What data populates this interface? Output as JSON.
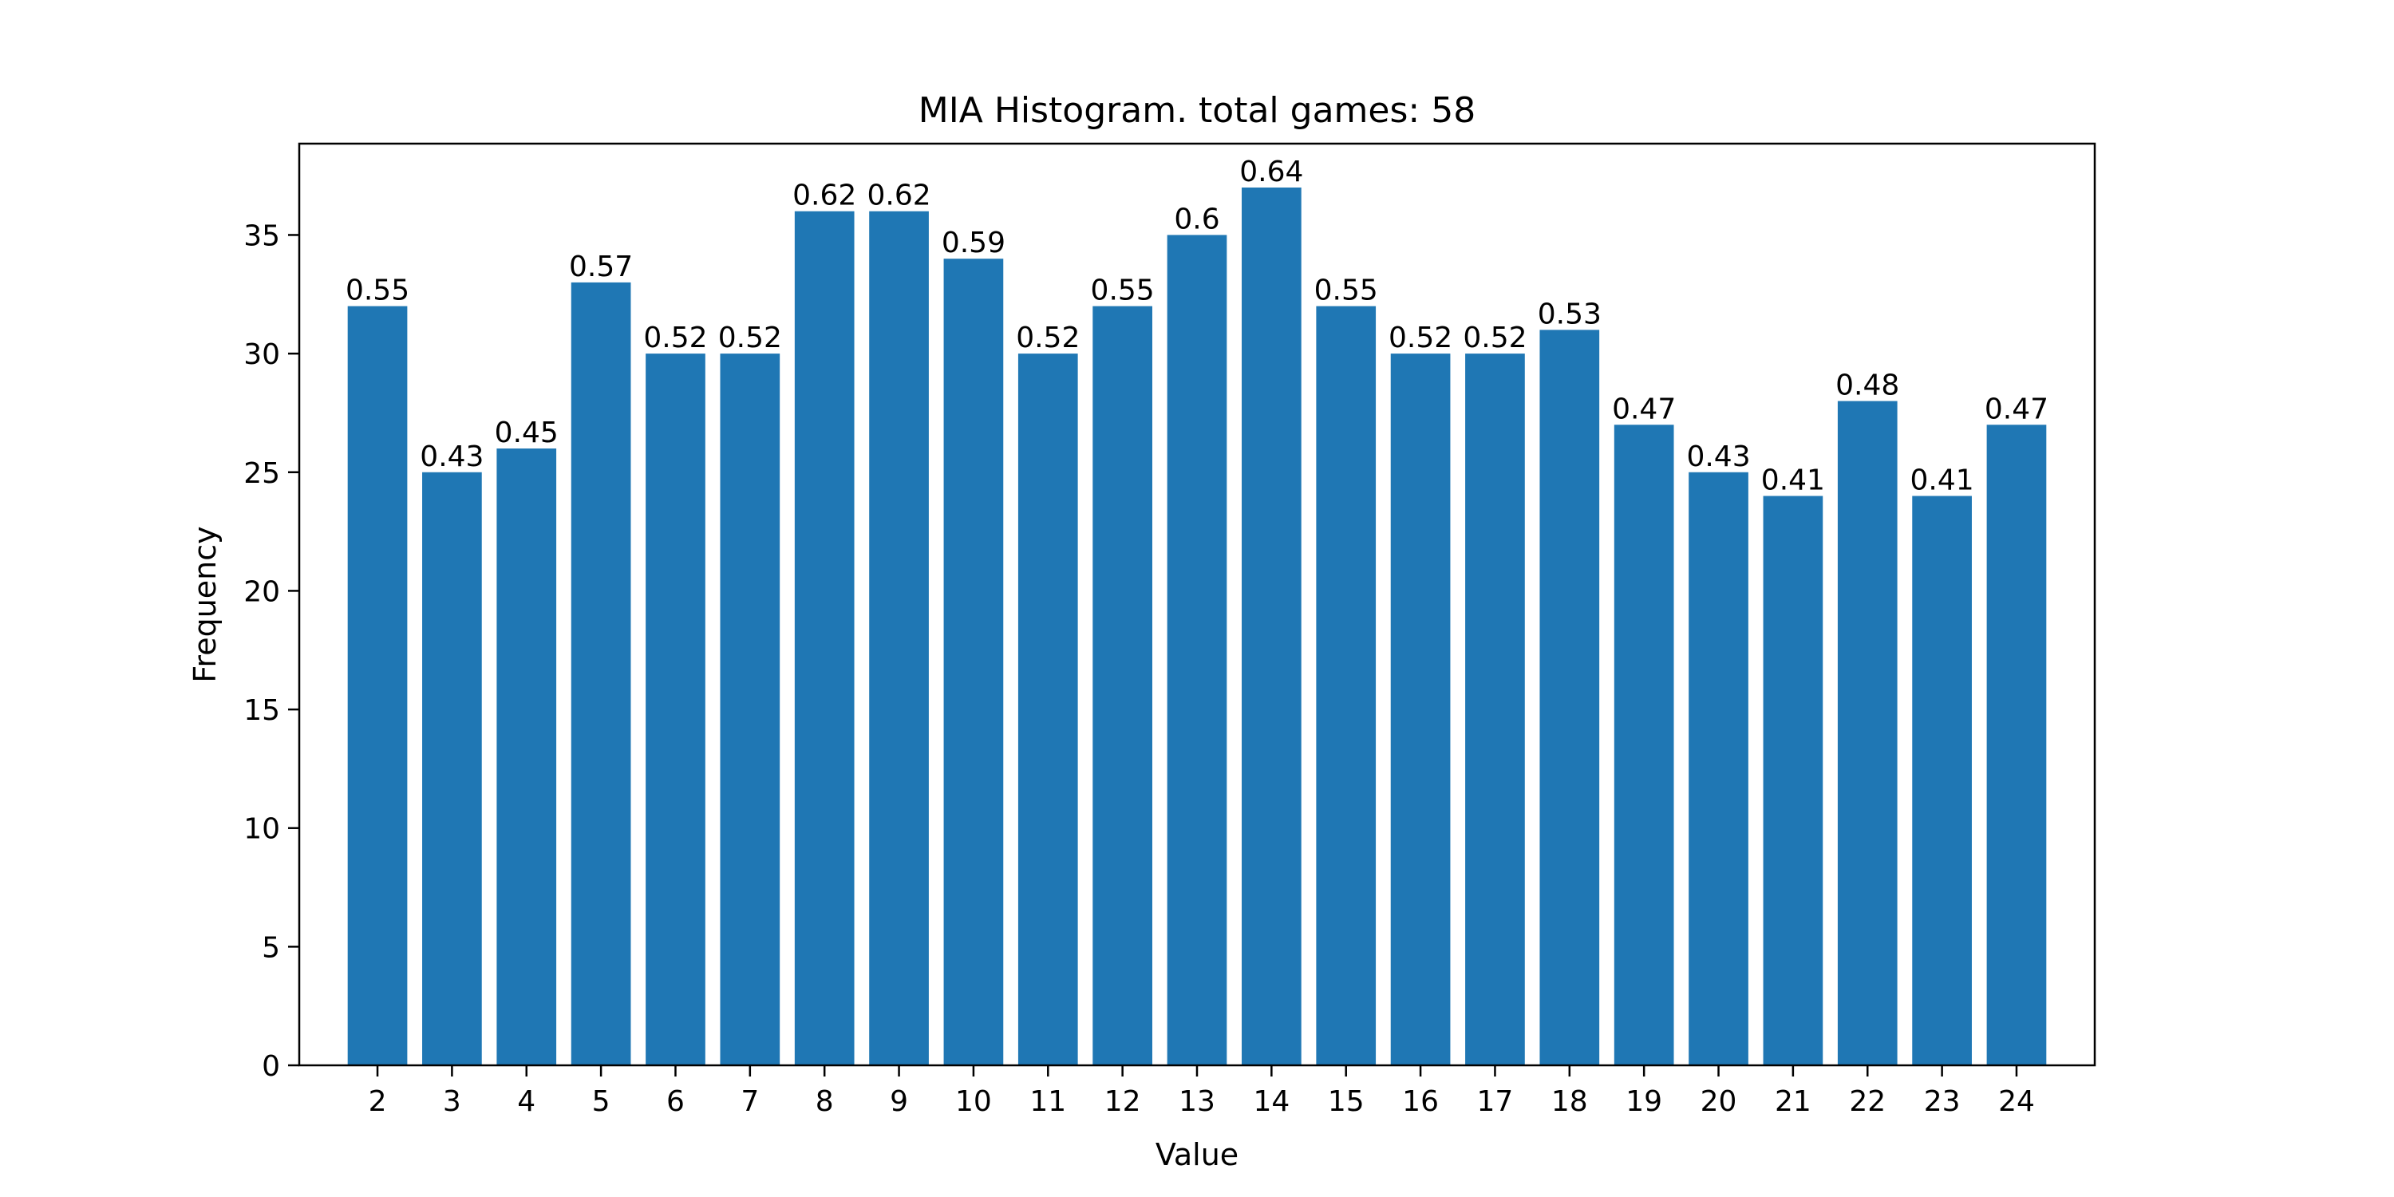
{
  "chart_data": {
    "type": "bar",
    "title": "MIA Histogram. total games: 58",
    "xlabel": "Value",
    "ylabel": "Frequency",
    "categories": [
      2,
      3,
      4,
      5,
      6,
      7,
      8,
      9,
      10,
      11,
      12,
      13,
      14,
      15,
      16,
      17,
      18,
      19,
      20,
      21,
      22,
      23,
      24
    ],
    "values": [
      32,
      25,
      26,
      33,
      30,
      30,
      36,
      36,
      34,
      30,
      32,
      35,
      37,
      32,
      30,
      30,
      31,
      27,
      25,
      24,
      28,
      24,
      27
    ],
    "bar_labels": [
      "0.55",
      "0.43",
      "0.45",
      "0.57",
      "0.52",
      "0.52",
      "0.62",
      "0.62",
      "0.59",
      "0.52",
      "0.55",
      "0.6",
      "0.64",
      "0.55",
      "0.52",
      "0.52",
      "0.53",
      "0.47",
      "0.43",
      "0.41",
      "0.48",
      "0.41",
      "0.47"
    ],
    "ylim": [
      0,
      38.85
    ],
    "yticks": [
      0,
      5,
      10,
      15,
      20,
      25,
      30,
      35
    ],
    "grid": false,
    "legend": "none",
    "colors": {
      "bar": "#1f77b4",
      "axes": "#000000",
      "background": "#ffffff"
    }
  }
}
